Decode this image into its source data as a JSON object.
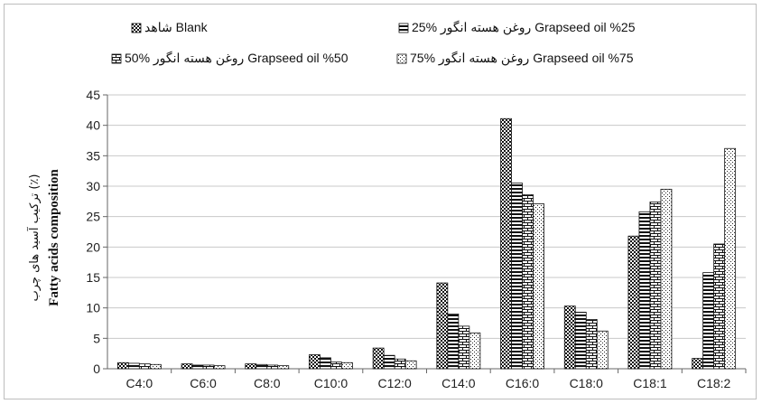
{
  "chart_data": {
    "type": "bar",
    "categories": [
      "C4:0",
      "C6:0",
      "C8:0",
      "C10:0",
      "C12:0",
      "C14:0",
      "C16:0",
      "C18:0",
      "C18:1",
      "C18:2"
    ],
    "series": [
      {
        "name": "شاهد Blank",
        "pattern": "dots-dense",
        "values": [
          1.0,
          0.8,
          0.8,
          2.3,
          3.4,
          14.1,
          41.1,
          10.3,
          21.8,
          1.7
        ]
      },
      {
        "name": "25% روغن هسته انگور Grapseed oil %25",
        "pattern": "hlines",
        "values": [
          0.9,
          0.6,
          0.7,
          1.8,
          2.2,
          9.0,
          30.5,
          9.3,
          25.8,
          15.8
        ]
      },
      {
        "name": "50% روغن هسته انگور Grapseed oil %50",
        "pattern": "bricks",
        "values": [
          0.8,
          0.6,
          0.6,
          1.1,
          1.6,
          7.0,
          28.6,
          8.1,
          27.4,
          20.5
        ]
      },
      {
        "name": "75% روغن هسته انگور Grapseed oil %75",
        "pattern": "dots-sparse",
        "values": [
          0.7,
          0.5,
          0.5,
          1.0,
          1.3,
          5.9,
          27.1,
          6.2,
          29.5,
          36.2
        ]
      }
    ],
    "ylim": [
      0,
      45
    ],
    "yticks": [
      0,
      5,
      10,
      15,
      20,
      25,
      30,
      35,
      40,
      45
    ],
    "ylabel": "Fatty acids composition",
    "ylabel_fa": "ترکیب آسید های چرب (٪)",
    "grid": "horizontal",
    "legend_placement": "top"
  }
}
